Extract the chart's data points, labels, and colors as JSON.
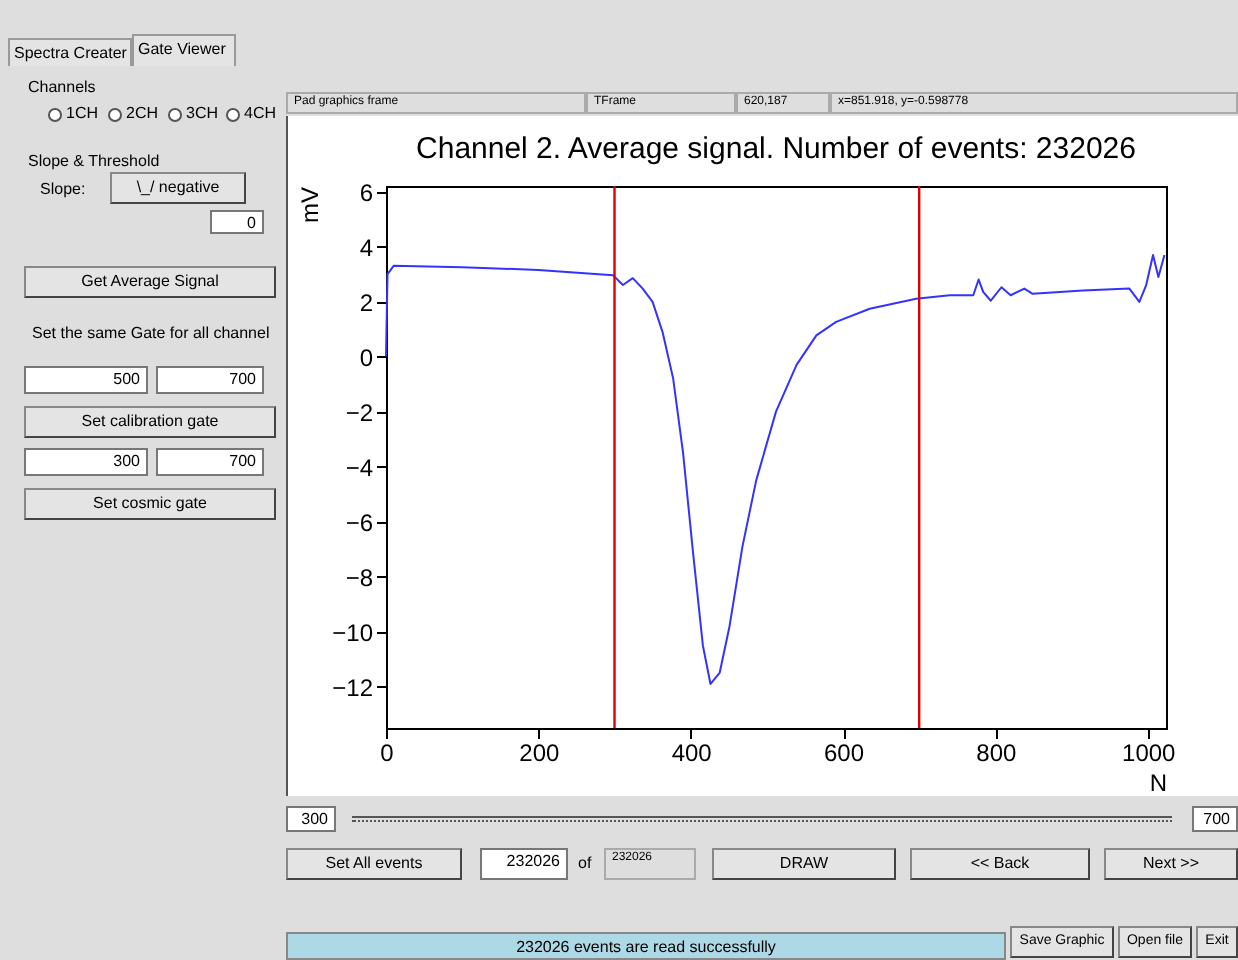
{
  "chart_data": {
    "type": "line",
    "title": "Channel 2. Average signal. Number of events: 232026",
    "xlabel": "N",
    "ylabel": "mV",
    "x": [
      0,
      2,
      10,
      100,
      200,
      298,
      311,
      324,
      337,
      350,
      363,
      377,
      390,
      403,
      416,
      426,
      438,
      451,
      468,
      486,
      512,
      539,
      565,
      591,
      635,
      696,
      740,
      771,
      778,
      784,
      794,
      808,
      820,
      838,
      849,
      915,
      976,
      989,
      998,
      1007,
      1014,
      1022
    ],
    "series": [
      {
        "color": "#3333ff",
        "values": [
          0,
          3.0,
          3.3,
          3.25,
          3.15,
          2.96,
          2.6,
          2.85,
          2.47,
          1.99,
          0.9,
          -0.8,
          -3.5,
          -7.1,
          -10.5,
          -11.9,
          -11.5,
          -9.8,
          -6.9,
          -4.5,
          -2.0,
          -0.3,
          0.77,
          1.26,
          1.74,
          2.1,
          2.23,
          2.23,
          2.8,
          2.35,
          2.03,
          2.52,
          2.23,
          2.47,
          2.28,
          2.4,
          2.47,
          1.99,
          2.6,
          3.69,
          2.89,
          3.69
        ]
      }
    ],
    "xlim": [
      0,
      1024
    ],
    "xticks": [
      0,
      200,
      400,
      600,
      800,
      1000
    ],
    "ylim": [
      -13.5,
      6.2
    ],
    "yticks": [
      -12,
      -10,
      -8,
      -6,
      -4,
      -2,
      0,
      2,
      4,
      6
    ],
    "ref_lines": [
      {
        "axis": "x",
        "value": 300,
        "color": "#dd0000"
      },
      {
        "axis": "x",
        "value": 700,
        "color": "#dd0000"
      }
    ],
    "grid": false,
    "legend": false,
    "marker": "none",
    "line_style": "solid",
    "annotations": [
      "Spectra Creater",
      "Gate Viewer",
      "Channels",
      "1CH",
      "2CH",
      "3CH",
      "4CH",
      "Slope & Threshold",
      "Slope:",
      "\\_/ negative",
      "0",
      "Get Average Signal",
      "Set the same Gate for all channel",
      "500",
      "700",
      "Set calibration gate",
      "300",
      "700",
      "Set cosmic gate",
      "Pad graphics frame",
      "TFrame",
      "620,187",
      "x=851.918, y=-0.598778",
      "300",
      "700",
      "Set All events",
      "232026",
      "of",
      "232026",
      "DRAW",
      "<< Back",
      "Next >>",
      "232026 events are read successfully",
      "Save Graphic",
      "Open file",
      "Exit"
    ]
  }
}
